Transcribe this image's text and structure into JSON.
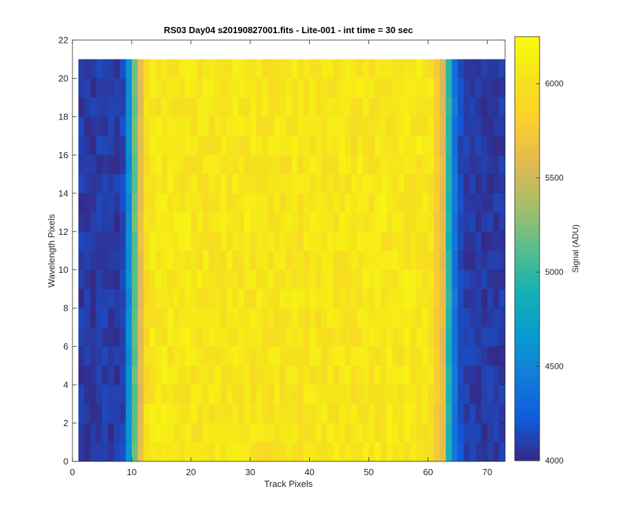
{
  "chart_data": {
    "type": "heatmap",
    "title": "RS03 Day04  s20190827001.fits - Lite-001 - int time = 30 sec",
    "xlabel": "Track Pixels",
    "ylabel": "Wavelength Pixels",
    "xlim": [
      0,
      73
    ],
    "ylim": [
      0,
      22
    ],
    "xticks": [
      0,
      10,
      20,
      30,
      40,
      50,
      60,
      70
    ],
    "yticks": [
      0,
      2,
      4,
      6,
      8,
      10,
      12,
      14,
      16,
      18,
      20,
      22
    ],
    "x_range": [
      1,
      72
    ],
    "y_range": [
      1,
      21
    ],
    "n_cols": 72,
    "n_rows": 21,
    "colormap": "parula",
    "colorbar": {
      "label": "Signal (ADU)",
      "min": 4000,
      "max": 6250,
      "ticks": [
        4000,
        4500,
        5000,
        5500,
        6000
      ]
    },
    "column_profile_adu": [
      4070,
      4080,
      4060,
      4075,
      4080,
      4065,
      4070,
      4120,
      4560,
      5150,
      5620,
      5980,
      6060,
      6070,
      6080,
      6060,
      6050,
      6060,
      6080,
      6060,
      6050,
      6070,
      6040,
      6060,
      6050,
      6040,
      6060,
      6050,
      6070,
      6040,
      6050,
      6020,
      6030,
      6050,
      6040,
      6030,
      6050,
      6020,
      6040,
      6050,
      6030,
      6040,
      6050,
      6040,
      6060,
      6050,
      6030,
      6060,
      6070,
      6040,
      6050,
      6080,
      6060,
      6070,
      6050,
      6080,
      6060,
      6070,
      6050,
      6040,
      5780,
      5600,
      4950,
      4400,
      4160,
      4090,
      4070,
      4080,
      4060,
      4070,
      4060,
      4075
    ]
  }
}
